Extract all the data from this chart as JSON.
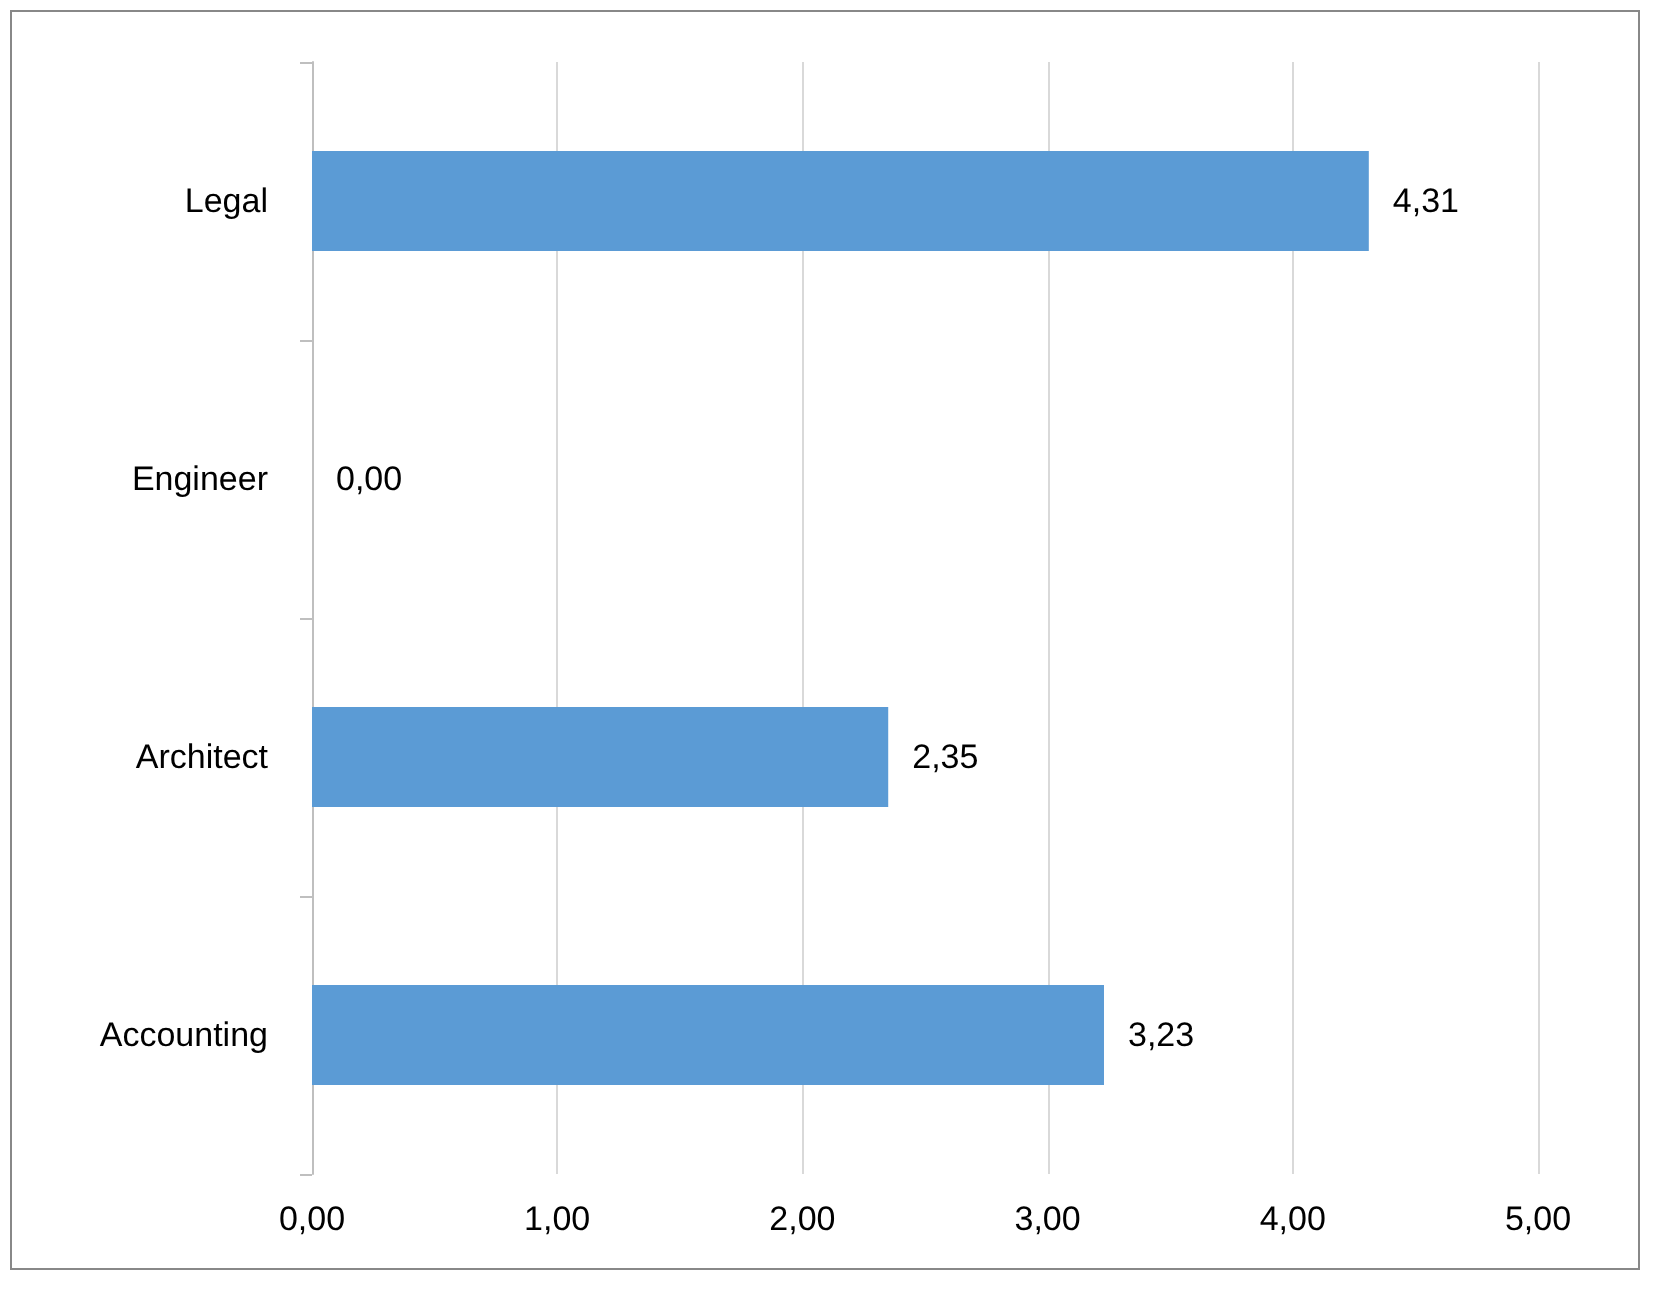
{
  "chart_data": {
    "type": "bar",
    "orientation": "horizontal",
    "categories": [
      "Legal",
      "Engineer",
      "Architect",
      "Accounting"
    ],
    "values": [
      4.31,
      0,
      2.35,
      3.23
    ],
    "value_labels": [
      "4,31",
      "0,00",
      "2,35",
      "3,23"
    ],
    "color": "#5b9bd5",
    "xlim": [
      0,
      5
    ],
    "xticks": [
      {
        "value": 0,
        "label": "0,00"
      },
      {
        "value": 1,
        "label": "1,00"
      },
      {
        "value": 2,
        "label": "2,00"
      },
      {
        "value": 3,
        "label": "3,00"
      },
      {
        "value": 4,
        "label": "4,00"
      },
      {
        "value": 5,
        "label": "5,00"
      }
    ],
    "grid": "x"
  }
}
